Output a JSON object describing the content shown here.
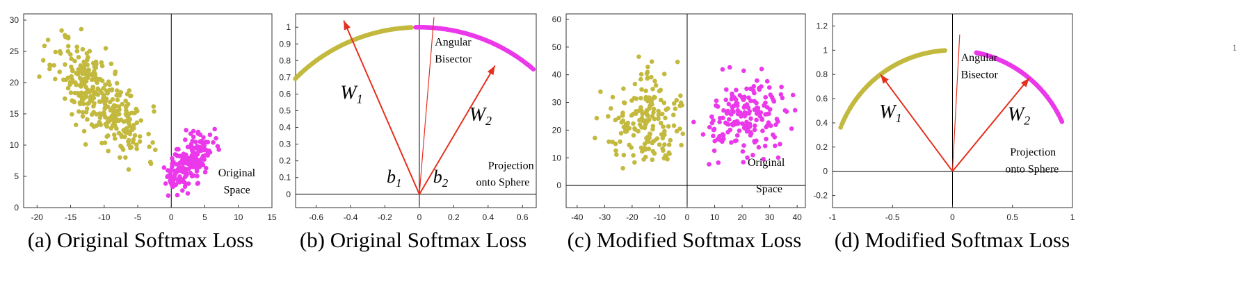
{
  "colors": {
    "olive": "#c2b93e",
    "magenta": "#ea38ea",
    "arrow": "#e5301e",
    "axis": "#000000",
    "frame": "#333333"
  },
  "chart_data": [
    {
      "type": "scatter",
      "caption": "(a) Original Softmax Loss",
      "xlim": [
        -22,
        15
      ],
      "ylim": [
        0,
        31
      ],
      "xticks": [
        -20,
        -15,
        -10,
        -5,
        0,
        5,
        10,
        15
      ],
      "yticks": [
        0,
        5,
        10,
        15,
        20,
        25,
        30
      ],
      "annotations": [
        {
          "text": "Original",
          "x": 7.0,
          "y": 5.0
        },
        {
          "text": "Space",
          "x": 7.8,
          "y": 2.3
        }
      ],
      "series": [
        {
          "name": "class 1",
          "color": "olive",
          "gen": {
            "kind": "gauss",
            "n": 330,
            "mx": -10.5,
            "my": 17.5,
            "sx": 3.4,
            "sy": 4.6,
            "rho": -0.72,
            "seed": 11,
            "xr": [
              -20,
              -1
            ],
            "yr": [
              6,
              30
            ]
          }
        },
        {
          "name": "class 2",
          "color": "magenta",
          "gen": {
            "kind": "gauss",
            "n": 190,
            "mx": 2.3,
            "my": 6.8,
            "sx": 1.9,
            "sy": 2.3,
            "rho": 0.6,
            "seed": 23,
            "xr": [
              -1.5,
              11.5
            ],
            "yr": [
              1.5,
              17
            ]
          }
        }
      ]
    },
    {
      "type": "scatter",
      "caption": "(b) Original Softmax Loss",
      "xlim": [
        -0.72,
        0.68
      ],
      "ylim": [
        -0.08,
        1.08
      ],
      "xticks": [
        -0.6,
        -0.4,
        -0.2,
        0,
        0.2,
        0.4,
        0.6
      ],
      "yticks": [
        0,
        0.1,
        0.2,
        0.3,
        0.4,
        0.5,
        0.6,
        0.7,
        0.8,
        0.9,
        1
      ],
      "arrows": [
        {
          "label": "W",
          "sub": "1",
          "to": [
            -0.44,
            1.04
          ],
          "label_at": [
            -0.46,
            0.57
          ]
        },
        {
          "label": "W",
          "sub": "2",
          "to": [
            0.44,
            0.77
          ],
          "label_at": [
            0.29,
            0.44
          ]
        },
        {
          "label": "",
          "sub": "",
          "to": [
            0.085,
            1.06
          ],
          "thin": true
        }
      ],
      "annotations": [
        {
          "text": "Angular",
          "x": 0.09,
          "y": 0.89
        },
        {
          "text": "Bisector",
          "x": 0.09,
          "y": 0.79
        },
        {
          "text": "Projection",
          "x": 0.4,
          "y": 0.15
        },
        {
          "text": "onto Sphere",
          "x": 0.33,
          "y": 0.05
        }
      ],
      "bias_labels": [
        {
          "text": "b",
          "sub": "1",
          "x": -0.19,
          "y": 0.07
        },
        {
          "text": "b",
          "sub": "2",
          "x": 0.08,
          "y": 0.07
        }
      ],
      "series": [
        {
          "name": "class 1",
          "color": "olive",
          "gen": {
            "kind": "arc",
            "n": 150,
            "xa": -0.72,
            "xb": -0.05,
            "seed": 31
          }
        },
        {
          "name": "class 2",
          "color": "magenta",
          "gen": {
            "kind": "arc",
            "n": 150,
            "xa": -0.02,
            "xb": 0.66,
            "seed": 37
          }
        }
      ]
    },
    {
      "type": "scatter",
      "caption": "(c) Modified Softmax Loss",
      "xlim": [
        -44,
        43
      ],
      "ylim": [
        -8,
        62
      ],
      "xticks": [
        -40,
        -30,
        -20,
        -10,
        0,
        10,
        20,
        30,
        40
      ],
      "yticks": [
        0,
        10,
        20,
        30,
        40,
        50,
        60
      ],
      "annotations": [
        {
          "text": "Original",
          "x": 22,
          "y": 7.0
        },
        {
          "text": "Space",
          "x": 25,
          "y": -2.5
        }
      ],
      "series": [
        {
          "name": "class 1",
          "color": "olive",
          "gen": {
            "kind": "gauss",
            "n": 175,
            "mx": -13,
            "my": 23,
            "sx": 8.5,
            "sy": 9,
            "rho": 0.1,
            "seed": 41,
            "xr": [
              -42,
              -1.5
            ],
            "yr": [
              6,
              50
            ]
          }
        },
        {
          "name": "class 2",
          "color": "magenta",
          "gen": {
            "kind": "gauss",
            "n": 185,
            "mx": 21,
            "my": 24,
            "sx": 9,
            "sy": 8,
            "rho": 0.2,
            "seed": 53,
            "xr": [
              2,
              40
            ],
            "yr": [
              7,
              50
            ]
          }
        }
      ]
    },
    {
      "type": "scatter",
      "caption": "(d) Modified Softmax Loss",
      "xlim": [
        -1,
        1
      ],
      "ylim": [
        -0.3,
        1.3
      ],
      "xticks": [
        -1,
        -0.5,
        0,
        0.5,
        1
      ],
      "yticks": [
        -0.2,
        0,
        0.2,
        0.4,
        0.6,
        0.8,
        1,
        1.2
      ],
      "arrows": [
        {
          "label": "W",
          "sub": "1",
          "to": [
            -0.6,
            0.8
          ],
          "label_at": [
            -0.61,
            0.44
          ]
        },
        {
          "label": "W",
          "sub": "2",
          "to": [
            0.64,
            0.77
          ],
          "label_at": [
            0.46,
            0.42
          ]
        },
        {
          "label": "",
          "sub": "",
          "to": [
            0.06,
            1.13
          ],
          "thin": true
        }
      ],
      "annotations": [
        {
          "text": "Angular",
          "x": 0.07,
          "y": 0.91
        },
        {
          "text": "Bisector",
          "x": 0.07,
          "y": 0.77
        },
        {
          "text": "Projection",
          "x": 0.48,
          "y": 0.13
        },
        {
          "text": "onto Sphere",
          "x": 0.44,
          "y": -0.01
        }
      ],
      "series": [
        {
          "name": "class 1",
          "color": "olive",
          "gen": {
            "kind": "arc",
            "n": 170,
            "xa": -0.93,
            "xb": -0.06,
            "seed": 61
          }
        },
        {
          "name": "class 2",
          "color": "magenta",
          "gen": {
            "kind": "arc",
            "n": 170,
            "xa": 0.2,
            "xb": 0.91,
            "seed": 67
          }
        }
      ]
    }
  ],
  "stray_mark": "1"
}
